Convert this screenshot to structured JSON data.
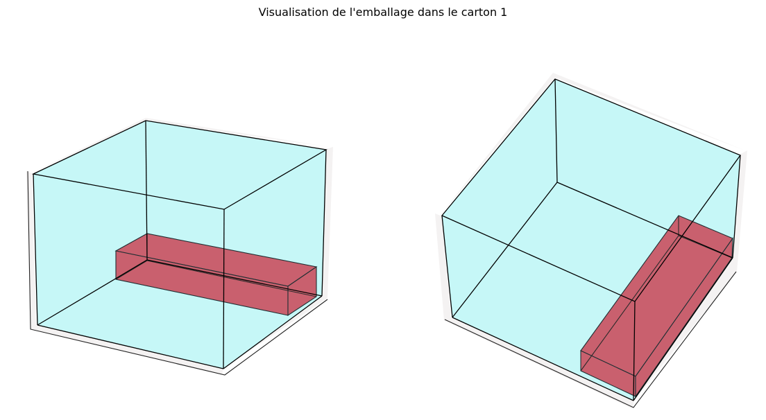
{
  "figure": {
    "title": "Visualisation de l'emballage dans le carton 1"
  },
  "colors": {
    "carton_fill": "#c6f7f7",
    "item_fill": "#c9606e",
    "edge": "#000000",
    "pane": "#f4f2f2"
  },
  "views": [
    {
      "name": "view-left",
      "carton": "carton 1",
      "items": 1
    },
    {
      "name": "view-right",
      "carton": "carton 1",
      "items": 1
    }
  ]
}
